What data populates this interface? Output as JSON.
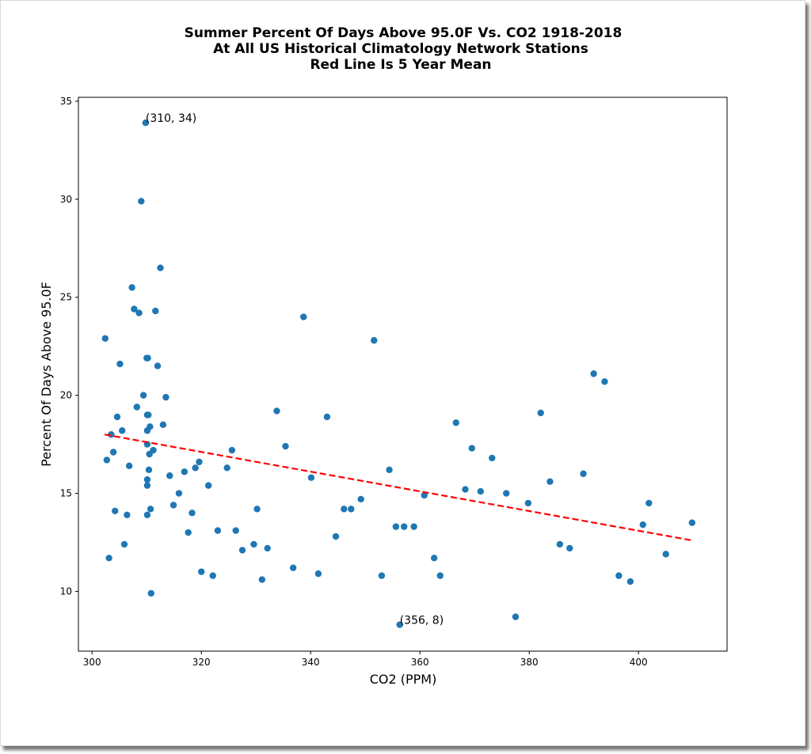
{
  "chart_data": {
    "type": "scatter",
    "title_lines": [
      "Summer Percent Of Days Above 95.0F Vs. CO2 1918-2018",
      "At All US Historical Climatology Network Stations",
      "Red Line Is 5 Year Mean"
    ],
    "xlabel": "CO2 (PPM)",
    "ylabel": "Percent Of Days Above 95.0F",
    "xlim": [
      297.5,
      416.2
    ],
    "ylim": [
      6.95,
      35.2
    ],
    "xticks": [
      300,
      320,
      340,
      360,
      380,
      400
    ],
    "yticks": [
      10,
      15,
      20,
      25,
      30,
      35
    ],
    "point_color": "#1f77b4",
    "trend_color": "#ff0000",
    "points": [
      [
        302.4,
        22.9
      ],
      [
        302.7,
        16.7
      ],
      [
        303.1,
        11.7
      ],
      [
        303.5,
        18.0
      ],
      [
        303.9,
        17.1
      ],
      [
        304.2,
        14.1
      ],
      [
        304.6,
        18.9
      ],
      [
        305.1,
        21.6
      ],
      [
        305.5,
        18.2
      ],
      [
        305.9,
        12.4
      ],
      [
        306.4,
        13.9
      ],
      [
        306.8,
        16.4
      ],
      [
        307.3,
        25.5
      ],
      [
        307.7,
        24.4
      ],
      [
        308.2,
        19.4
      ],
      [
        308.6,
        24.2
      ],
      [
        309.0,
        29.9
      ],
      [
        309.4,
        20.0
      ],
      [
        309.8,
        33.9
      ],
      [
        310.0,
        21.9
      ],
      [
        310.1,
        19.0
      ],
      [
        310.1,
        18.2
      ],
      [
        310.1,
        17.5
      ],
      [
        310.1,
        15.7
      ],
      [
        310.1,
        15.4
      ],
      [
        310.1,
        13.9
      ],
      [
        310.2,
        21.9
      ],
      [
        310.3,
        19.0
      ],
      [
        310.4,
        16.2
      ],
      [
        310.5,
        17.0
      ],
      [
        310.6,
        18.4
      ],
      [
        310.7,
        14.2
      ],
      [
        310.8,
        9.9
      ],
      [
        311.2,
        17.2
      ],
      [
        311.6,
        24.3
      ],
      [
        312.0,
        21.5
      ],
      [
        312.5,
        26.5
      ],
      [
        313.0,
        18.5
      ],
      [
        313.5,
        19.9
      ],
      [
        314.2,
        15.9
      ],
      [
        314.9,
        14.4
      ],
      [
        315.9,
        15.0
      ],
      [
        316.9,
        16.1
      ],
      [
        317.6,
        13.0
      ],
      [
        318.3,
        14.0
      ],
      [
        318.9,
        16.3
      ],
      [
        319.6,
        16.6
      ],
      [
        320.0,
        11.0
      ],
      [
        321.3,
        15.4
      ],
      [
        322.1,
        10.8
      ],
      [
        323.0,
        13.1
      ],
      [
        324.7,
        16.3
      ],
      [
        325.6,
        17.2
      ],
      [
        326.3,
        13.1
      ],
      [
        327.5,
        12.1
      ],
      [
        329.6,
        12.4
      ],
      [
        330.2,
        14.2
      ],
      [
        331.1,
        10.6
      ],
      [
        332.1,
        12.2
      ],
      [
        333.8,
        19.2
      ],
      [
        335.4,
        17.4
      ],
      [
        336.8,
        11.2
      ],
      [
        338.7,
        24.0
      ],
      [
        340.1,
        15.8
      ],
      [
        341.4,
        10.9
      ],
      [
        343.0,
        18.9
      ],
      [
        344.6,
        12.8
      ],
      [
        346.1,
        14.2
      ],
      [
        347.4,
        14.2
      ],
      [
        349.2,
        14.7
      ],
      [
        351.6,
        22.8
      ],
      [
        353.0,
        10.8
      ],
      [
        354.4,
        16.2
      ],
      [
        355.6,
        13.3
      ],
      [
        356.3,
        8.3
      ],
      [
        357.1,
        13.3
      ],
      [
        358.9,
        13.3
      ],
      [
        360.8,
        14.9
      ],
      [
        362.6,
        11.7
      ],
      [
        363.7,
        10.8
      ],
      [
        366.6,
        18.6
      ],
      [
        368.3,
        15.2
      ],
      [
        369.5,
        17.3
      ],
      [
        371.1,
        15.1
      ],
      [
        373.2,
        16.8
      ],
      [
        375.8,
        15.0
      ],
      [
        377.5,
        8.7
      ],
      [
        379.8,
        14.5
      ],
      [
        382.1,
        19.1
      ],
      [
        383.8,
        15.6
      ],
      [
        385.6,
        12.4
      ],
      [
        387.4,
        12.2
      ],
      [
        389.9,
        16.0
      ],
      [
        391.8,
        21.1
      ],
      [
        393.8,
        20.7
      ],
      [
        396.4,
        10.8
      ],
      [
        398.5,
        10.5
      ],
      [
        400.8,
        13.4
      ],
      [
        401.9,
        14.5
      ],
      [
        405.0,
        11.9
      ],
      [
        409.8,
        13.5
      ]
    ],
    "trend_line": [
      [
        302.3,
        18.0
      ],
      [
        409.8,
        12.6
      ]
    ],
    "annotations": [
      {
        "text": "(310, 34)",
        "x": 309.8,
        "y": 33.9
      },
      {
        "text": "(356, 8)",
        "x": 356.3,
        "y": 8.3
      }
    ]
  }
}
